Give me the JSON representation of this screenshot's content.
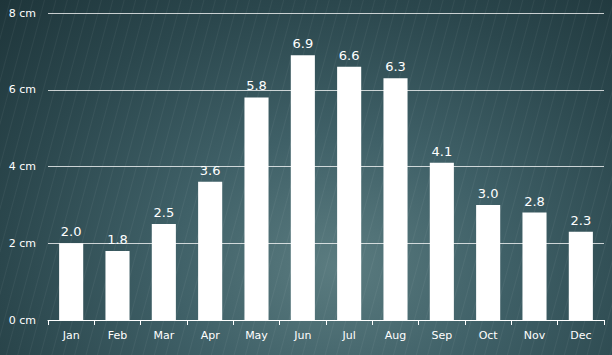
{
  "chart_data": {
    "type": "bar",
    "categories": [
      "Jan",
      "Feb",
      "Mar",
      "Apr",
      "May",
      "Jun",
      "Jul",
      "Aug",
      "Sep",
      "Oct",
      "Nov",
      "Dec"
    ],
    "values": [
      2.0,
      1.8,
      2.5,
      3.6,
      5.8,
      6.9,
      6.6,
      6.3,
      4.1,
      3.0,
      2.8,
      2.3
    ],
    "value_labels": [
      "2.0",
      "1.8",
      "2.5",
      "3.6",
      "5.8",
      "6.9",
      "6.6",
      "6.3",
      "4.1",
      "3.0",
      "2.8",
      "2.3"
    ],
    "color": "#ffffff",
    "ylim": [
      0,
      8
    ],
    "yticks": [
      {
        "value": 0,
        "label": "0 cm"
      },
      {
        "value": 2,
        "label": "2 cm"
      },
      {
        "value": 4,
        "label": "4 cm"
      },
      {
        "value": 6,
        "label": "6 cm"
      },
      {
        "value": 8,
        "label": "8 cm"
      }
    ],
    "grid": true,
    "data_labels": true
  }
}
